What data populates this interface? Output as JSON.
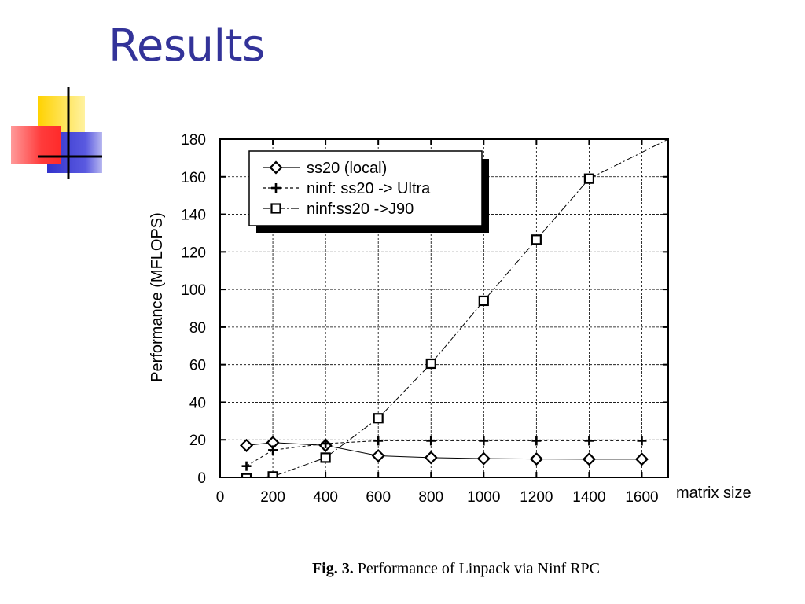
{
  "slide": {
    "title": "Results",
    "caption_prefix": "Fig. 3.",
    "caption_text": " Performance of Linpack via Ninf RPC"
  },
  "colors": {
    "title": "#333399",
    "deco_yellow": "#ffd200",
    "deco_red": "#ff3b3b",
    "deco_blue": "#3333cc"
  },
  "chart_data": {
    "type": "line",
    "title": "",
    "xlabel": "matrix size",
    "ylabel": "Performance (MFLOPS)",
    "xlim": [
      0,
      1700
    ],
    "ylim": [
      0,
      180
    ],
    "xticks": [
      0,
      200,
      400,
      600,
      800,
      1000,
      1200,
      1400,
      1600
    ],
    "yticks": [
      0,
      20,
      40,
      60,
      80,
      100,
      120,
      140,
      160,
      180
    ],
    "grid": true,
    "legend_position": "top-left",
    "series": [
      {
        "name": "ss20 (local)",
        "marker": "diamond",
        "line": "solid",
        "x": [
          100,
          200,
          400,
          600,
          800,
          1000,
          1200,
          1400,
          1600
        ],
        "y": [
          17,
          18.5,
          17,
          11.5,
          10.5,
          10,
          9.8,
          9.7,
          9.7
        ]
      },
      {
        "name": "ninf: ss20 -> Ultra",
        "marker": "plus",
        "line": "dashed",
        "x": [
          100,
          200,
          400,
          600,
          800,
          1000,
          1200,
          1400,
          1600
        ],
        "y": [
          6,
          14.5,
          18,
          19.5,
          19.5,
          19.5,
          19.5,
          19.5,
          19.5
        ]
      },
      {
        "name": "ninf:ss20 ->J90",
        "marker": "square",
        "line": "dashdot",
        "x": [
          100,
          200,
          400,
          600,
          800,
          1000,
          1200,
          1400,
          1700
        ],
        "y": [
          -0.5,
          0.5,
          10.5,
          31.5,
          60.5,
          94,
          126.5,
          159,
          180
        ]
      }
    ]
  }
}
